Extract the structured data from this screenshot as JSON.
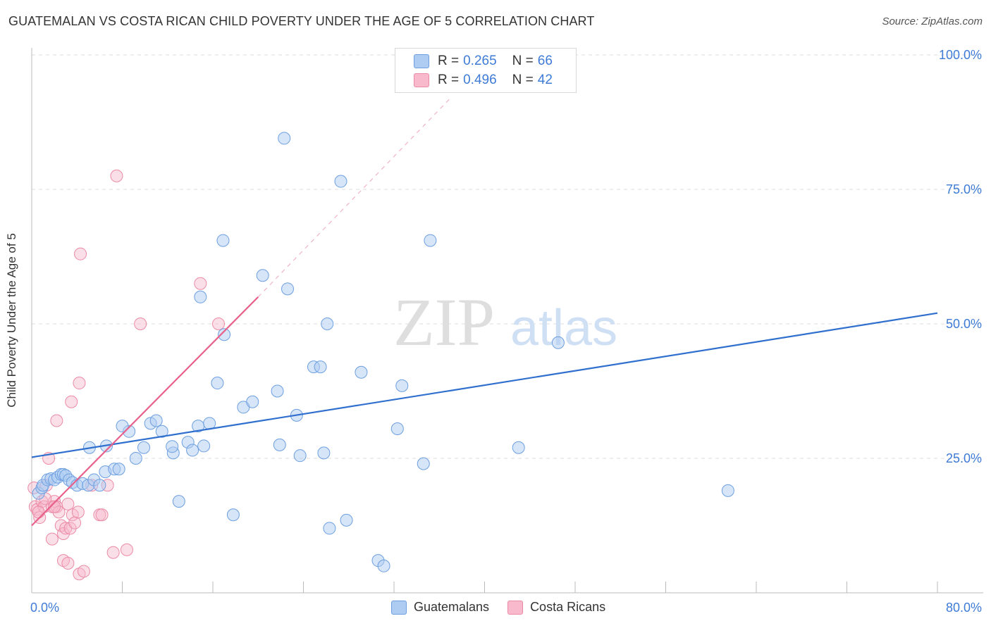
{
  "header": {
    "title": "GUATEMALAN VS COSTA RICAN CHILD POVERTY UNDER THE AGE OF 5 CORRELATION CHART",
    "source": "Source: ZipAtlas.com"
  },
  "watermark": {
    "zip": "ZIP",
    "atlas": "atlas"
  },
  "legend": {
    "rows": [
      {
        "r_label": "R = ",
        "r_value": "0.265",
        "n_label": "N = ",
        "n_value": "66",
        "color": "#aecbf2"
      },
      {
        "r_label": "R = ",
        "r_value": "0.496",
        "n_label": "N = ",
        "n_value": "42",
        "color": "#f7b9cb"
      }
    ]
  },
  "bottom_legend": [
    "Guatemalans",
    "Costa Ricans"
  ],
  "chart_data": {
    "type": "scatter",
    "title": "GUATEMALAN VS COSTA RICAN CHILD POVERTY UNDER THE AGE OF 5 CORRELATION CHART",
    "xlabel": "",
    "ylabel": "Child Poverty Under the Age of 5",
    "xlim": [
      0,
      80
    ],
    "ylim": [
      0,
      100
    ],
    "x_tick_labels": [
      "0.0%",
      "80.0%"
    ],
    "y_ticks": [
      25,
      50,
      75,
      100
    ],
    "y_tick_labels": [
      "25.0%",
      "50.0%",
      "75.0%",
      "100.0%"
    ],
    "grid": true,
    "series": [
      {
        "name": "Guatemalans",
        "color": "#aecbf2",
        "edge": "#6d9fe0",
        "line_color": "#2f6fce",
        "trend": {
          "x": [
            0,
            80
          ],
          "y": [
            25.2,
            52.0
          ],
          "style": "solid"
        },
        "points": [
          [
            0.6,
            18.5
          ],
          [
            0.9,
            19.5
          ],
          [
            1.0,
            20.0
          ],
          [
            1.4,
            21.0
          ],
          [
            1.7,
            21.2
          ],
          [
            2.0,
            21.0
          ],
          [
            2.3,
            21.5
          ],
          [
            2.6,
            22.0
          ],
          [
            2.8,
            22.0
          ],
          [
            3.0,
            21.8
          ],
          [
            3.3,
            21.0
          ],
          [
            3.6,
            20.5
          ],
          [
            4.0,
            20.0
          ],
          [
            4.5,
            20.3
          ],
          [
            5.0,
            20.0
          ],
          [
            5.5,
            21.0
          ],
          [
            6.0,
            20.0
          ],
          [
            6.5,
            22.5
          ],
          [
            7.3,
            23.0
          ],
          [
            7.7,
            23.0
          ],
          [
            5.1,
            27.0
          ],
          [
            6.6,
            27.3
          ],
          [
            8.6,
            30.0
          ],
          [
            8.0,
            31.0
          ],
          [
            9.2,
            25.0
          ],
          [
            9.9,
            27.0
          ],
          [
            10.5,
            31.5
          ],
          [
            11.0,
            32.0
          ],
          [
            11.5,
            30.0
          ],
          [
            12.5,
            26.0
          ],
          [
            12.4,
            27.2
          ],
          [
            13.0,
            17.0
          ],
          [
            13.8,
            28.0
          ],
          [
            14.2,
            26.5
          ],
          [
            15.2,
            27.3
          ],
          [
            14.7,
            31.0
          ],
          [
            15.7,
            31.5
          ],
          [
            14.9,
            55.0
          ],
          [
            16.4,
            39.0
          ],
          [
            17.0,
            48.0
          ],
          [
            16.9,
            65.5
          ],
          [
            17.8,
            14.5
          ],
          [
            18.7,
            34.5
          ],
          [
            19.5,
            35.5
          ],
          [
            20.4,
            59.0
          ],
          [
            21.9,
            27.5
          ],
          [
            21.7,
            37.5
          ],
          [
            22.3,
            84.5
          ],
          [
            22.6,
            56.5
          ],
          [
            23.4,
            33.0
          ],
          [
            23.7,
            25.5
          ],
          [
            24.9,
            42.0
          ],
          [
            25.5,
            42.0
          ],
          [
            25.8,
            26.0
          ],
          [
            26.1,
            50.0
          ],
          [
            26.3,
            12.0
          ],
          [
            27.8,
            13.5
          ],
          [
            27.3,
            76.5
          ],
          [
            29.1,
            41.0
          ],
          [
            30.6,
            6.0
          ],
          [
            31.1,
            5.0
          ],
          [
            32.3,
            30.5
          ],
          [
            32.7,
            38.5
          ],
          [
            34.6,
            24.0
          ],
          [
            35.2,
            65.5
          ],
          [
            43.0,
            27.0
          ],
          [
            46.5,
            46.5
          ],
          [
            61.5,
            19.0
          ]
        ]
      },
      {
        "name": "Costa Ricans",
        "color": "#f7b9cb",
        "edge": "#eb8aa5",
        "line_color": "#e8618a",
        "trend": {
          "x": [
            0,
            20
          ],
          "y": [
            12.5,
            55.0
          ],
          "style": "solid",
          "extended_to": [
            37,
            92
          ],
          "extension_style": "dashed"
        },
        "points": [
          [
            0.2,
            19.5
          ],
          [
            0.3,
            16.0
          ],
          [
            0.5,
            15.5
          ],
          [
            0.7,
            14.0
          ],
          [
            0.9,
            17.0
          ],
          [
            1.1,
            16.0
          ],
          [
            1.3,
            20.0
          ],
          [
            1.5,
            25.0
          ],
          [
            1.8,
            16.0
          ],
          [
            2.0,
            17.0
          ],
          [
            2.2,
            16.0
          ],
          [
            2.4,
            15.0
          ],
          [
            2.6,
            12.5
          ],
          [
            2.8,
            11.0
          ],
          [
            3.0,
            12.0
          ],
          [
            3.2,
            16.5
          ],
          [
            3.4,
            12.0
          ],
          [
            3.6,
            14.5
          ],
          [
            3.8,
            13.0
          ],
          [
            4.1,
            15.0
          ],
          [
            1.8,
            10.0
          ],
          [
            2.2,
            32.0
          ],
          [
            2.8,
            6.0
          ],
          [
            3.2,
            5.5
          ],
          [
            3.5,
            35.5
          ],
          [
            4.2,
            39.0
          ],
          [
            4.2,
            3.5
          ],
          [
            4.6,
            4.0
          ],
          [
            5.3,
            20.0
          ],
          [
            6.0,
            14.5
          ],
          [
            6.2,
            14.5
          ],
          [
            6.7,
            20.0
          ],
          [
            7.2,
            7.5
          ],
          [
            7.5,
            77.5
          ],
          [
            8.4,
            8.0
          ],
          [
            9.6,
            50.0
          ],
          [
            4.3,
            63.0
          ],
          [
            14.9,
            57.5
          ],
          [
            16.5,
            50.0
          ],
          [
            2.0,
            16.0
          ],
          [
            0.6,
            15.0
          ],
          [
            1.2,
            17.5
          ]
        ]
      }
    ]
  }
}
